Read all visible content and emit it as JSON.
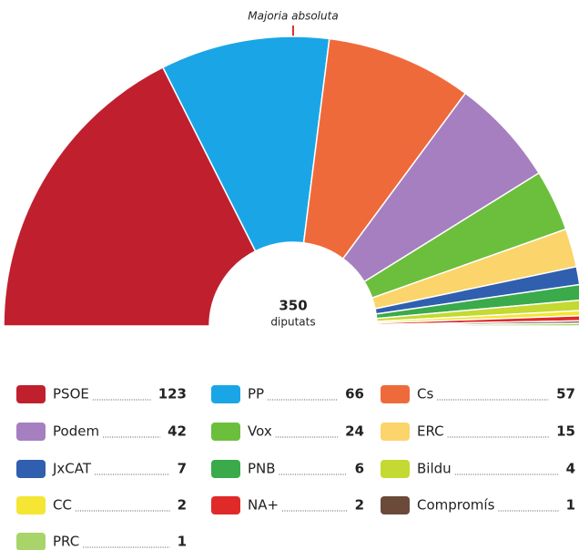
{
  "chart_data": {
    "type": "hemicycle",
    "annotation": "Majoria absoluta",
    "total": 350,
    "total_label": "diputats",
    "categories": [
      "PSOE",
      "PP",
      "Cs",
      "Podem",
      "Vox",
      "ERC",
      "JxCAT",
      "PNB",
      "Bildu",
      "CC",
      "NA+",
      "Compromís",
      "PRC"
    ],
    "values": [
      123,
      66,
      57,
      42,
      24,
      15,
      7,
      6,
      4,
      2,
      2,
      1,
      1
    ],
    "colors": [
      "#c0202e",
      "#1aa6e6",
      "#ef6a3a",
      "#a67fc0",
      "#6cbf3c",
      "#fbd46b",
      "#2f5fae",
      "#3aaa4a",
      "#c4d931",
      "#f4e632",
      "#e02a2a",
      "#6b4a3a",
      "#a8d46a"
    ]
  }
}
